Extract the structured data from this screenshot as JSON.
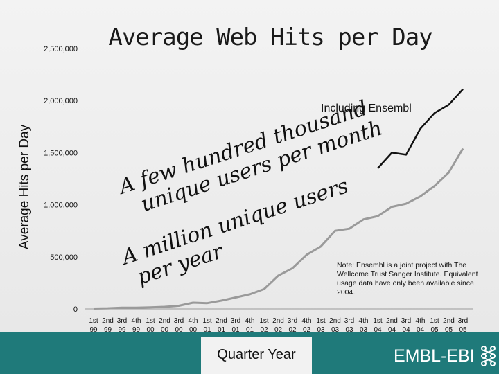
{
  "chart_data": {
    "type": "line",
    "title": "Average Web Hits per Day",
    "ylabel": "Average Hits per Day",
    "xlabel": "Quarter Year",
    "ylim": [
      0,
      2500000
    ],
    "yticks": [
      "0",
      "500,000",
      "1,000,000",
      "1,500,000",
      "2,000,000",
      "2,500,000"
    ],
    "categories": [
      {
        "q": "1st",
        "y": "99"
      },
      {
        "q": "2nd",
        "y": "99"
      },
      {
        "q": "3rd",
        "y": "99"
      },
      {
        "q": "4th",
        "y": "99"
      },
      {
        "q": "1st",
        "y": "00"
      },
      {
        "q": "2nd",
        "y": "00"
      },
      {
        "q": "3rd",
        "y": "00"
      },
      {
        "q": "4th",
        "y": "00"
      },
      {
        "q": "1st",
        "y": "01"
      },
      {
        "q": "2nd",
        "y": "01"
      },
      {
        "q": "3rd",
        "y": "01"
      },
      {
        "q": "4th",
        "y": "01"
      },
      {
        "q": "1st",
        "y": "02"
      },
      {
        "q": "2nd",
        "y": "02"
      },
      {
        "q": "3rd",
        "y": "02"
      },
      {
        "q": "4th",
        "y": "02"
      },
      {
        "q": "1st",
        "y": "03"
      },
      {
        "q": "2nd",
        "y": "03"
      },
      {
        "q": "3rd",
        "y": "03"
      },
      {
        "q": "4th",
        "y": "03"
      },
      {
        "q": "1st",
        "y": "04"
      },
      {
        "q": "2nd",
        "y": "04"
      },
      {
        "q": "3rd",
        "y": "04"
      },
      {
        "q": "4th",
        "y": "04"
      },
      {
        "q": "1st",
        "y": "05"
      },
      {
        "q": "2nd",
        "y": "05"
      },
      {
        "q": "3rd",
        "y": "05"
      }
    ],
    "series": [
      {
        "color": "#9a9a9a",
        "values": [
          3000,
          6000,
          12000,
          12000,
          15000,
          20000,
          30000,
          60000,
          55000,
          80000,
          110000,
          140000,
          190000,
          320000,
          390000,
          520000,
          600000,
          750000,
          770000,
          860000,
          890000,
          980000,
          1010000,
          1080000,
          1180000,
          1310000,
          1540000
        ]
      },
      {
        "name": "Including Ensembl",
        "color": "#111111",
        "values": [
          null,
          null,
          null,
          null,
          null,
          null,
          null,
          null,
          null,
          null,
          null,
          null,
          null,
          null,
          null,
          null,
          null,
          null,
          null,
          null,
          1350000,
          1500000,
          1480000,
          1730000,
          1880000,
          1960000,
          2110000
        ]
      }
    ],
    "annotations": [
      "A few hundred thousand unique users per month",
      "A million unique users per year"
    ],
    "note": "Note: Ensembl is a joint project with The Wellcome Trust Sanger Institute. Equivalent usage data have only been available since 2004."
  },
  "footer": {
    "logo_text": "EMBL-EBI",
    "colors": {
      "band": "#1f7a7a",
      "logo": "#ffffff"
    }
  }
}
